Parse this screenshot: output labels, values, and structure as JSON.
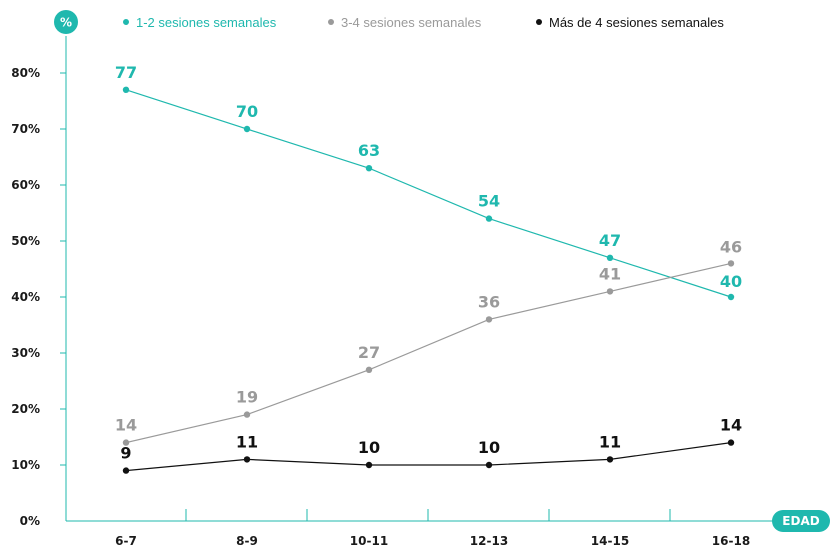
{
  "chart_data": {
    "type": "line",
    "ylabel": "%",
    "xlabel": "EDAD",
    "ylim": [
      0,
      80
    ],
    "yticks": [
      "0%",
      "10%",
      "20%",
      "30%",
      "40%",
      "50%",
      "60%",
      "70%",
      "80%"
    ],
    "categories": [
      "6-7",
      "8-9",
      "10-11",
      "12-13",
      "14-15",
      "16-18"
    ],
    "grid": false,
    "legend_position": "top",
    "series": [
      {
        "name": "1-2 sesiones semanales",
        "color": "#1fb8ae",
        "values": [
          77,
          70,
          63,
          54,
          47,
          40
        ],
        "labels": [
          "77",
          "70",
          "63",
          "54",
          "47",
          "40"
        ]
      },
      {
        "name": "3-4 sesiones semanales",
        "color": "#9a9a9a",
        "values": [
          14,
          19,
          27,
          36,
          41,
          46
        ],
        "labels": [
          "14",
          "19",
          "27",
          "36",
          "41",
          "46"
        ]
      },
      {
        "name": "Más de 4 sesiones semanales",
        "color": "#111111",
        "values": [
          9,
          11,
          10,
          10,
          11,
          14
        ],
        "labels": [
          "9",
          "11",
          "10",
          "10",
          "11",
          "14"
        ]
      }
    ]
  }
}
